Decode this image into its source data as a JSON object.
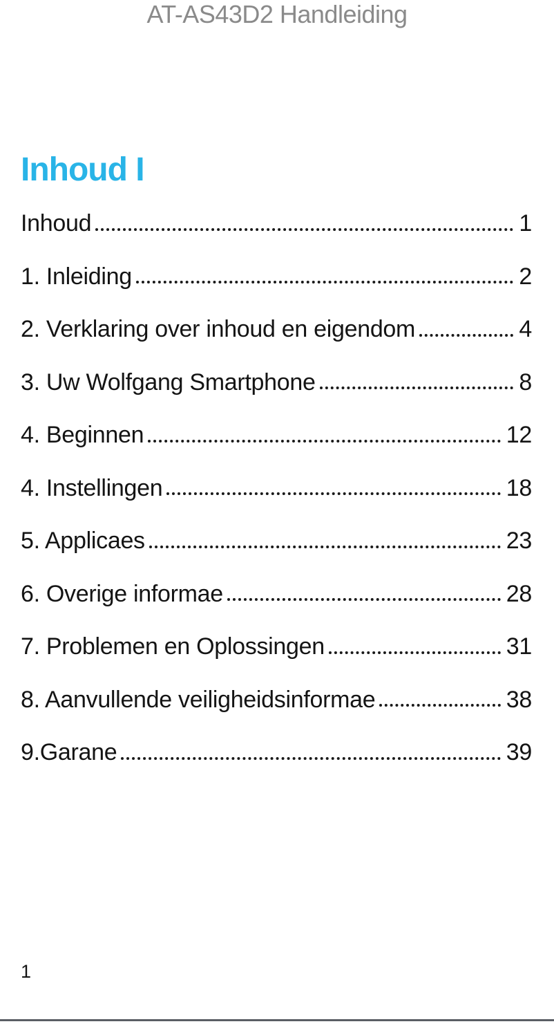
{
  "header": {
    "title": "AT-AS43D2 Handleiding",
    "title_color": "#8a8a8a"
  },
  "toc": {
    "heading": "Inhoud I",
    "heading_color": "#29b4e7",
    "entries": [
      {
        "title": "Inhoud",
        "page": "1"
      },
      {
        "title": "1. Inleiding",
        "page": "2"
      },
      {
        "title": "2. Verklaring over inhoud en eigendom",
        "page": "4"
      },
      {
        "title": "3. Uw Wolfgang Smartphone",
        "page": "8"
      },
      {
        "title": "4. Beginnen",
        "page": "12"
      },
      {
        "title": "4. Instellingen",
        "page": "18"
      },
      {
        "title": "5. Applicaes",
        "page": "23"
      },
      {
        "title": "6. Overige informae",
        "page": "28"
      },
      {
        "title": "7. Problemen en Oplossingen",
        "page": "31"
      },
      {
        "title": "8. Aanvullende veiligheidsinformae",
        "page": "38"
      },
      {
        "title": "9.Garane",
        "page": "39"
      }
    ]
  },
  "footer": {
    "page_number": "1"
  }
}
